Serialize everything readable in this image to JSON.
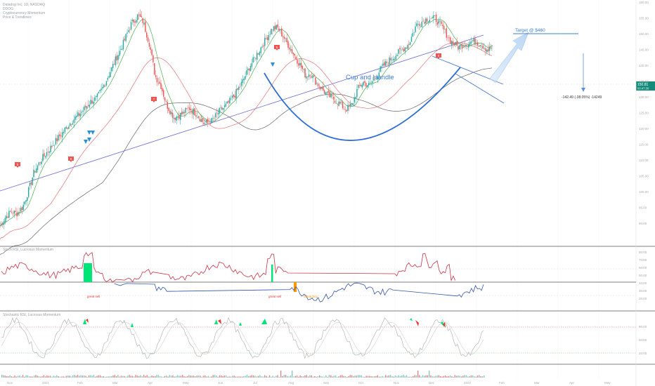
{
  "header": {
    "line1": "Datadog Inc, 1D, NASDAQ",
    "line2": "DDOG",
    "line3": "Cryptocurrency Momentum",
    "line4": "Price & Trendlines"
  },
  "annotations": {
    "pattern_label": "Cup and Handle",
    "target_label": "Target @ $460",
    "measure_label": "-142.49 (-38.05%) -14249",
    "price_tag_main": "150.81",
    "price_tag_sub": "00:47:30",
    "great_sell_1": "great sell",
    "great_sell_2": "great sell",
    "great_buy": "Great buy",
    "rsi_title": "Stoch RSI, Lucrosus Momentum",
    "stoch_title": "Stochastic RSI, Lucrosus Momentum",
    "signal_badges": [
      "5",
      "6",
      "7",
      "5",
      "6"
    ]
  },
  "colors": {
    "up_candle": "#26a69a",
    "down_candle": "#ef5350",
    "cup_curve": "#2f6fd6",
    "channel_upper": "#6a6ad8",
    "ma_green": "#4caf50",
    "ma_red": "#e57373",
    "ma_dark": "#666666",
    "badge_red": "#f05350",
    "signal_blue": "#2a8fd6",
    "target_blue": "#3d7fd9",
    "rsi_red": "#cc3344",
    "rsi_blue": "#3355aa",
    "green_fill": "#00e676",
    "orange_fill": "#ff9800",
    "price_tag_green": "#138a7a"
  },
  "chart_data": {
    "type": "candlestick",
    "price_axis": {
      "ylim": [
        88,
        162
      ],
      "ticks": [
        "160.00",
        "155.00",
        "150.00",
        "145.00",
        "140.00",
        "135.00",
        "130.00",
        "125.00",
        "120.00",
        "115.00",
        "110.00",
        "105.00",
        "100.00",
        "95.00",
        "90.00"
      ]
    },
    "rsi_axis": {
      "ylim": [
        0,
        100
      ],
      "ticks": [
        "80.00",
        "70.00",
        "60.00",
        "50.00",
        "40.00",
        "30.00",
        "20.00"
      ]
    },
    "stoch_axis": {
      "ylim": [
        0,
        100
      ],
      "ticks": [
        "80.00",
        "50.00",
        "20.00"
      ]
    },
    "time_axis": {
      "labels": [
        "Nov",
        "2021",
        "Feb",
        "Mar",
        "Apr",
        "May",
        "Jun",
        "Jul",
        "Aug",
        "Sep",
        "Oct",
        "Nov",
        "Dec",
        "2022",
        "Feb",
        "Mar",
        "Apr",
        "May"
      ]
    },
    "close_anchors": [
      [
        0,
        93.0
      ],
      [
        15,
        96.0
      ],
      [
        30,
        97.5
      ],
      [
        45,
        97.0
      ],
      [
        60,
        99.0
      ],
      [
        75,
        104.0
      ],
      [
        90,
        110.0
      ],
      [
        110,
        114.0
      ],
      [
        130,
        117.0
      ],
      [
        150,
        120.0
      ],
      [
        170,
        123.0
      ],
      [
        190,
        126.0
      ],
      [
        210,
        128.0
      ],
      [
        240,
        132.0
      ],
      [
        255,
        133.0
      ],
      [
        270,
        136.0
      ],
      [
        290,
        141.0
      ],
      [
        305,
        145.0
      ],
      [
        325,
        150.0
      ],
      [
        345,
        156.0
      ],
      [
        365,
        159.0
      ],
      [
        378,
        157.0
      ],
      [
        395,
        150.0
      ],
      [
        410,
        140.0
      ],
      [
        425,
        137.0
      ],
      [
        440,
        131.0
      ],
      [
        460,
        127.0
      ],
      [
        480,
        128.0
      ],
      [
        500,
        130.0
      ],
      [
        520,
        128.0
      ],
      [
        540,
        125.0
      ],
      [
        560,
        126.0
      ],
      [
        580,
        129.0
      ],
      [
        600,
        131.0
      ],
      [
        620,
        134.0
      ],
      [
        640,
        138.0
      ],
      [
        660,
        143.0
      ],
      [
        680,
        147.0
      ],
      [
        700,
        151.0
      ],
      [
        720,
        155.0
      ],
      [
        735,
        155.0
      ],
      [
        750,
        152.0
      ],
      [
        765,
        149.0
      ],
      [
        780,
        146.0
      ],
      [
        795,
        143.0
      ],
      [
        808,
        140.0
      ],
      [
        820,
        141.0
      ],
      [
        835,
        138.0
      ],
      [
        850,
        136.0
      ],
      [
        865,
        134.0
      ],
      [
        880,
        133.0
      ],
      [
        900,
        131.0
      ],
      [
        915,
        129.5
      ],
      [
        930,
        131.0
      ],
      [
        945,
        136.0
      ],
      [
        960,
        138.0
      ],
      [
        975,
        137.0
      ],
      [
        990,
        139.0
      ],
      [
        1005,
        142.0
      ],
      [
        1020,
        144.0
      ],
      [
        1040,
        146.0
      ],
      [
        1060,
        148.0
      ],
      [
        1080,
        150.0
      ],
      [
        1100,
        156.0
      ],
      [
        1115,
        157.0
      ],
      [
        1130,
        158.0
      ],
      [
        1150,
        158.0
      ],
      [
        1170,
        155.0
      ],
      [
        1190,
        151.0
      ],
      [
        1210,
        149.0
      ],
      [
        1230,
        150.0
      ],
      [
        1250,
        151.0
      ],
      [
        1270,
        150.0
      ],
      [
        1290,
        148.0
      ],
      [
        1300,
        149.5
      ]
    ],
    "moving_averages": [
      {
        "name": "EMA fast",
        "color": "#4caf50"
      },
      {
        "name": "MA slow",
        "color": "#e57373"
      },
      {
        "name": "MA 200",
        "color": "#666666"
      }
    ]
  }
}
